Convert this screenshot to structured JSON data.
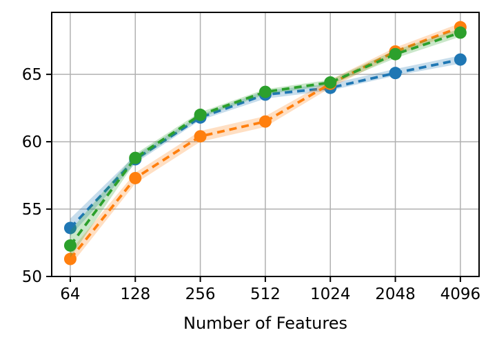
{
  "chart_data": {
    "type": "line",
    "title": "",
    "xlabel": "Number of Features",
    "ylabel": "",
    "x_scale": "log2",
    "x": [
      64,
      128,
      256,
      512,
      1024,
      2048,
      4096
    ],
    "xtick_labels": [
      "64",
      "128",
      "256",
      "512",
      "1024",
      "2048",
      "4096"
    ],
    "yticks": [
      50,
      55,
      60,
      65
    ],
    "ytick_labels": [
      "50",
      "55",
      "60",
      "65"
    ],
    "xlim": [
      52.5,
      5000
    ],
    "ylim": [
      50,
      69.6
    ],
    "grid": true,
    "legend": "none",
    "line_style": "dashed",
    "marker": "circle",
    "series": [
      {
        "name": "blue",
        "color": "#1f77b4",
        "values": [
          53.6,
          58.7,
          61.8,
          63.5,
          64.0,
          65.1,
          66.1
        ],
        "band_lower": [
          53.0,
          58.4,
          61.6,
          63.2,
          63.8,
          64.9,
          65.8
        ],
        "band_upper": [
          54.3,
          59.0,
          62.0,
          63.8,
          64.3,
          65.4,
          66.4
        ]
      },
      {
        "name": "orange",
        "color": "#ff7f0e",
        "values": [
          51.3,
          57.3,
          60.4,
          61.5,
          64.3,
          66.7,
          68.5
        ],
        "band_lower": [
          50.8,
          56.9,
          60.0,
          61.1,
          64.0,
          66.4,
          68.2
        ],
        "band_upper": [
          51.9,
          57.7,
          60.8,
          61.9,
          64.6,
          67.0,
          68.8
        ]
      },
      {
        "name": "green",
        "color": "#2ca02c",
        "values": [
          52.3,
          58.8,
          62.0,
          63.7,
          64.4,
          66.5,
          68.1
        ],
        "band_lower": [
          51.4,
          58.5,
          61.8,
          63.5,
          64.2,
          66.2,
          67.8
        ],
        "band_upper": [
          53.4,
          59.1,
          62.2,
          63.9,
          64.6,
          66.8,
          68.4
        ]
      }
    ],
    "colors": {
      "grid": "#b0b0b0",
      "spine": "#000000",
      "background": "#ffffff",
      "band_opacity": 0.25
    }
  }
}
